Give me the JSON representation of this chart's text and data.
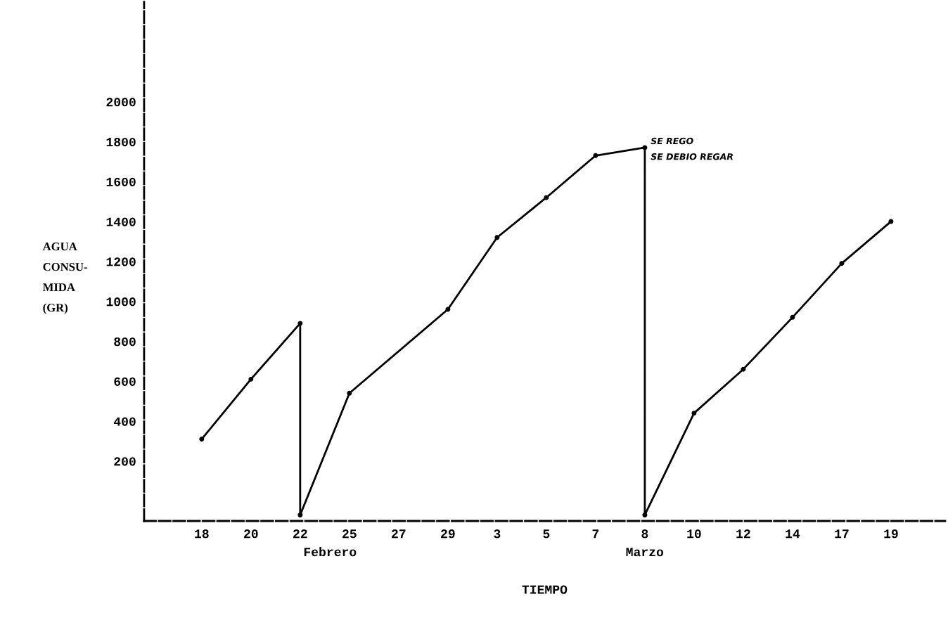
{
  "chart_data": {
    "type": "line",
    "xlabel": "TIEMPO",
    "ylabel": "AGUA\nCONSU-\nMIDA\n(GR)",
    "categories": [
      "18",
      "20",
      "22",
      "25",
      "27",
      "29",
      "3",
      "5",
      "7",
      "8",
      "10",
      "12",
      "14",
      "17",
      "19"
    ],
    "series": [
      {
        "color": "#000000",
        "x": [
          "18",
          "20",
          "22",
          "22",
          "25",
          "29",
          "3",
          "5",
          "7",
          "8",
          "8",
          "10",
          "12",
          "14",
          "17",
          "19"
        ],
        "values": [
          310,
          610,
          890,
          -70,
          540,
          960,
          1320,
          1520,
          1730,
          1770,
          -70,
          440,
          660,
          920,
          1190,
          1400
        ]
      }
    ],
    "ylim": [
      -100,
      2500
    ],
    "yticks": [
      200,
      400,
      600,
      800,
      1000,
      1200,
      1400,
      1600,
      1800,
      2000
    ],
    "annotations": [
      {
        "text": "SE REGO",
        "x": "8",
        "y": 1770
      },
      {
        "text": "SE DEBIO REGAR",
        "x": "8",
        "y": 1770
      },
      "Febrero",
      "Marzo"
    ],
    "marker": "circle",
    "line_style": "solid",
    "grid": false,
    "legend": false
  }
}
